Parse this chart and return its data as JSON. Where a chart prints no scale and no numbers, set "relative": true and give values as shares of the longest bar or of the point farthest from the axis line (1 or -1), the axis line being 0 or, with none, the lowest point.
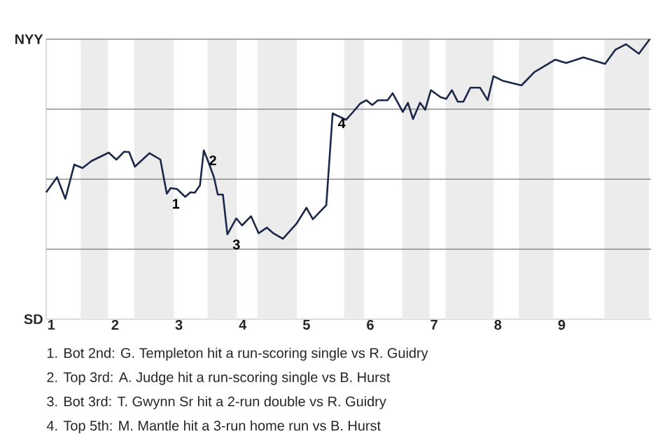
{
  "chart_data": {
    "type": "line",
    "relative": true,
    "color": "#1b2748",
    "marker": "none",
    "line_style": "solid",
    "x": [
      0.92,
      1.09,
      1.22,
      1.36,
      1.49,
      1.63,
      1.9,
      2.02,
      2.14,
      2.22,
      2.31,
      2.54,
      2.71,
      2.81,
      2.87,
      2.97,
      3.1,
      3.18,
      3.25,
      3.33,
      3.39,
      3.47,
      3.55,
      3.61,
      3.69,
      3.76,
      3.9,
      3.99,
      4.13,
      4.25,
      4.38,
      4.48,
      4.63,
      4.84,
      5,
      5.1,
      5.31,
      5.41,
      5.62,
      5.73,
      5.84,
      5.94,
      6.03,
      6.12,
      6.27,
      6.35,
      6.51,
      6.59,
      6.67,
      6.78,
      6.86,
      6.95,
      7.1,
      7.19,
      7.28,
      7.37,
      7.46,
      7.57,
      7.72,
      7.84,
      7.93,
      8.07,
      8.37,
      8.57,
      8.9,
      9.07,
      9.34,
      9.68,
      9.84,
      10.01,
      10.21,
      10.38
    ],
    "values": [
      0.453,
      0.507,
      0.43,
      0.552,
      0.54,
      0.565,
      0.595,
      0.57,
      0.598,
      0.597,
      0.545,
      0.593,
      0.57,
      0.448,
      0.468,
      0.465,
      0.437,
      0.453,
      0.452,
      0.478,
      0.603,
      0.557,
      0.507,
      0.445,
      0.445,
      0.303,
      0.36,
      0.335,
      0.368,
      0.307,
      0.327,
      0.307,
      0.287,
      0.34,
      0.398,
      0.357,
      0.407,
      0.735,
      0.712,
      0.74,
      0.77,
      0.782,
      0.765,
      0.782,
      0.782,
      0.807,
      0.74,
      0.773,
      0.715,
      0.773,
      0.748,
      0.818,
      0.793,
      0.787,
      0.818,
      0.777,
      0.777,
      0.827,
      0.827,
      0.782,
      0.868,
      0.852,
      0.835,
      0.882,
      0.927,
      0.915,
      0.935,
      0.912,
      0.962,
      0.982,
      0.948,
      1
    ],
    "xlim": [
      0.92,
      10.4
    ],
    "xticks": [
      1,
      2,
      3,
      4,
      5,
      6,
      7,
      8,
      9
    ],
    "ref_lines": [
      {
        "axis": "y",
        "value": 0.25,
        "color": "#8c8c8c"
      },
      {
        "axis": "y",
        "value": 0.5,
        "color": "#8c8c8c"
      },
      {
        "axis": "y",
        "value": 0.75,
        "color": "#8c8c8c"
      },
      {
        "axis": "y",
        "value": 1,
        "color": "#8c8c8c"
      }
    ],
    "bands": [
      {
        "axis": "x",
        "from": 1.46,
        "to": 1.89,
        "color": "#ececec"
      },
      {
        "axis": "x",
        "from": 2.3,
        "to": 2.92,
        "color": "#ececec"
      },
      {
        "axis": "x",
        "from": 3.45,
        "to": 3.91,
        "color": "#ececec"
      },
      {
        "axis": "x",
        "from": 4.23,
        "to": 4.85,
        "color": "#ececec"
      },
      {
        "axis": "x",
        "from": 5.59,
        "to": 5.9,
        "color": "#ececec"
      },
      {
        "axis": "x",
        "from": 6.5,
        "to": 6.93,
        "color": "#ececec"
      },
      {
        "axis": "x",
        "from": 7.18,
        "to": 7.93,
        "color": "#ececec"
      },
      {
        "axis": "x",
        "from": 8.33,
        "to": 8.87,
        "color": "#ececec"
      },
      {
        "axis": "x",
        "from": 9.67,
        "to": 10.37,
        "color": "#ececec"
      }
    ],
    "annotations": [
      {
        "text": "1",
        "x": 2.81,
        "y": 0.448
      },
      {
        "text": "2",
        "x": 3.39,
        "y": 0.603
      },
      {
        "text": "3",
        "x": 3.76,
        "y": 0.303
      },
      {
        "text": "4",
        "x": 5.41,
        "y": 0.735
      },
      "NYY",
      "SD",
      "1. Bot 2nd: G. Templeton hit a run-scoring single vs R. Guidry",
      "2. Top 3rd: A. Judge hit a run-scoring single vs B. Hurst",
      "3. Bot 3rd: T. Gwynn Sr hit a 2-run double vs R. Guidry",
      "4. Top 5th: M. Mantle hit a 3-run home run vs B. Hurst"
    ]
  }
}
